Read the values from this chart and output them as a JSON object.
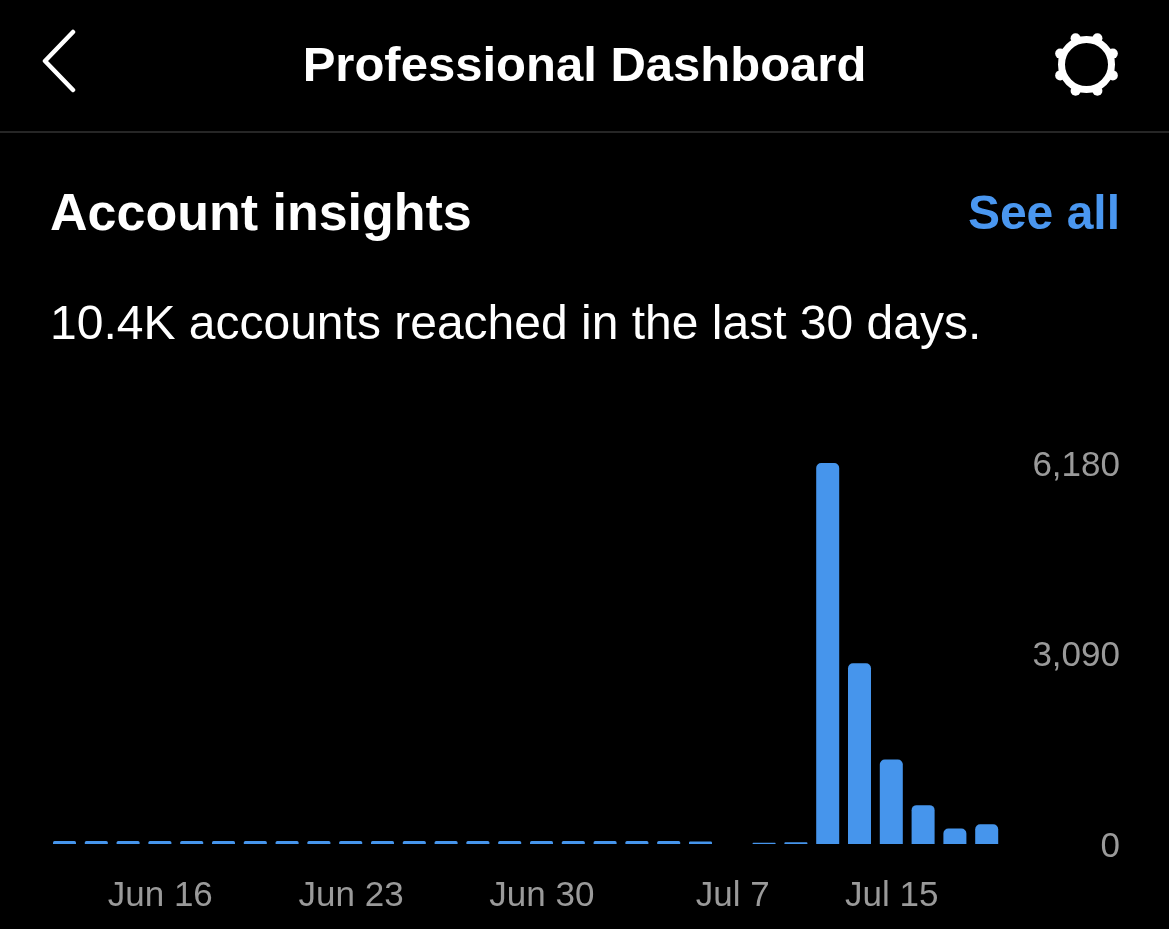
{
  "chart_data": {
    "type": "bar",
    "title": "Account insights",
    "subtitle": "10.4K accounts reached in the last 30 days.",
    "annotations": [
      "Professional Dashboard",
      "See all"
    ],
    "categories": [
      null,
      null,
      null,
      "Jun 16",
      null,
      null,
      null,
      null,
      null,
      "Jun 23",
      null,
      null,
      null,
      null,
      null,
      "Jun 30",
      null,
      null,
      null,
      null,
      null,
      "Jul 7",
      null,
      null,
      null,
      null,
      "Jul 15",
      null,
      null,
      null
    ],
    "values": [
      50,
      50,
      50,
      50,
      50,
      50,
      50,
      50,
      50,
      50,
      50,
      50,
      50,
      50,
      50,
      50,
      50,
      50,
      50,
      50,
      40,
      0,
      20,
      30,
      6180,
      2930,
      1370,
      630,
      250,
      320
    ],
    "color": "#4695ec",
    "ylim": [
      0,
      6180
    ],
    "yticks": [
      0,
      {
        "value": 3090,
        "label": "3,090"
      },
      {
        "value": 6180,
        "label": "6,180"
      }
    ]
  }
}
